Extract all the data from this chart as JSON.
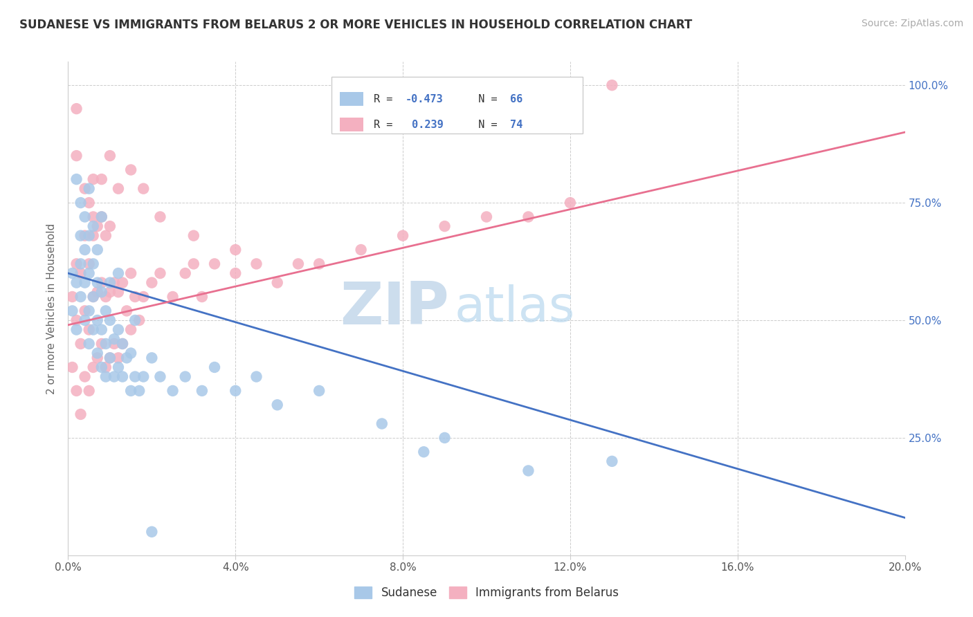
{
  "title": "SUDANESE VS IMMIGRANTS FROM BELARUS 2 OR MORE VEHICLES IN HOUSEHOLD CORRELATION CHART",
  "source": "Source: ZipAtlas.com",
  "ylabel_label": "2 or more Vehicles in Household",
  "xlim": [
    0.0,
    0.2
  ],
  "ylim": [
    0.0,
    1.05
  ],
  "blue_R": -0.473,
  "blue_N": 66,
  "pink_R": 0.239,
  "pink_N": 74,
  "blue_color": "#a8c8e8",
  "pink_color": "#f4b0c0",
  "blue_line_color": "#4472c4",
  "pink_line_color": "#e87090",
  "legend_label_blue": "Sudanese",
  "legend_label_pink": "Immigrants from Belarus",
  "blue_trend_y0": 0.6,
  "blue_trend_y1": 0.08,
  "pink_trend_y0": 0.49,
  "pink_trend_y1": 0.9,
  "blue_scatter_x": [
    0.001,
    0.001,
    0.002,
    0.002,
    0.003,
    0.003,
    0.003,
    0.003,
    0.004,
    0.004,
    0.004,
    0.004,
    0.005,
    0.005,
    0.005,
    0.005,
    0.006,
    0.006,
    0.006,
    0.006,
    0.007,
    0.007,
    0.007,
    0.007,
    0.008,
    0.008,
    0.008,
    0.009,
    0.009,
    0.009,
    0.01,
    0.01,
    0.01,
    0.011,
    0.011,
    0.012,
    0.012,
    0.013,
    0.013,
    0.014,
    0.015,
    0.015,
    0.016,
    0.017,
    0.018,
    0.02,
    0.022,
    0.025,
    0.028,
    0.032,
    0.035,
    0.04,
    0.045,
    0.05,
    0.06,
    0.075,
    0.085,
    0.09,
    0.11,
    0.13,
    0.002,
    0.005,
    0.008,
    0.012,
    0.016,
    0.02
  ],
  "blue_scatter_y": [
    0.52,
    0.6,
    0.48,
    0.58,
    0.55,
    0.62,
    0.68,
    0.75,
    0.5,
    0.58,
    0.65,
    0.72,
    0.45,
    0.52,
    0.6,
    0.68,
    0.48,
    0.55,
    0.62,
    0.7,
    0.43,
    0.5,
    0.58,
    0.65,
    0.4,
    0.48,
    0.56,
    0.38,
    0.45,
    0.52,
    0.42,
    0.5,
    0.58,
    0.38,
    0.46,
    0.4,
    0.48,
    0.38,
    0.45,
    0.42,
    0.35,
    0.43,
    0.38,
    0.35,
    0.38,
    0.42,
    0.38,
    0.35,
    0.38,
    0.35,
    0.4,
    0.35,
    0.38,
    0.32,
    0.35,
    0.28,
    0.22,
    0.25,
    0.18,
    0.2,
    0.8,
    0.78,
    0.72,
    0.6,
    0.5,
    0.05
  ],
  "pink_scatter_x": [
    0.001,
    0.001,
    0.002,
    0.002,
    0.002,
    0.003,
    0.003,
    0.003,
    0.004,
    0.004,
    0.004,
    0.005,
    0.005,
    0.005,
    0.005,
    0.006,
    0.006,
    0.006,
    0.006,
    0.007,
    0.007,
    0.007,
    0.008,
    0.008,
    0.008,
    0.009,
    0.009,
    0.009,
    0.01,
    0.01,
    0.01,
    0.011,
    0.011,
    0.012,
    0.012,
    0.013,
    0.013,
    0.014,
    0.015,
    0.015,
    0.016,
    0.017,
    0.018,
    0.02,
    0.022,
    0.025,
    0.028,
    0.03,
    0.032,
    0.035,
    0.04,
    0.045,
    0.05,
    0.06,
    0.07,
    0.08,
    0.09,
    0.1,
    0.11,
    0.12,
    0.002,
    0.004,
    0.006,
    0.008,
    0.01,
    0.012,
    0.015,
    0.018,
    0.022,
    0.03,
    0.04,
    0.055,
    0.002,
    0.13
  ],
  "pink_scatter_y": [
    0.4,
    0.55,
    0.35,
    0.5,
    0.62,
    0.3,
    0.45,
    0.6,
    0.38,
    0.52,
    0.68,
    0.35,
    0.48,
    0.62,
    0.75,
    0.4,
    0.55,
    0.68,
    0.8,
    0.42,
    0.56,
    0.7,
    0.45,
    0.58,
    0.72,
    0.4,
    0.55,
    0.68,
    0.42,
    0.56,
    0.7,
    0.45,
    0.58,
    0.42,
    0.56,
    0.45,
    0.58,
    0.52,
    0.48,
    0.6,
    0.55,
    0.5,
    0.55,
    0.58,
    0.6,
    0.55,
    0.6,
    0.62,
    0.55,
    0.62,
    0.6,
    0.62,
    0.58,
    0.62,
    0.65,
    0.68,
    0.7,
    0.72,
    0.72,
    0.75,
    0.85,
    0.78,
    0.72,
    0.8,
    0.85,
    0.78,
    0.82,
    0.78,
    0.72,
    0.68,
    0.65,
    0.62,
    0.95,
    1.0
  ]
}
